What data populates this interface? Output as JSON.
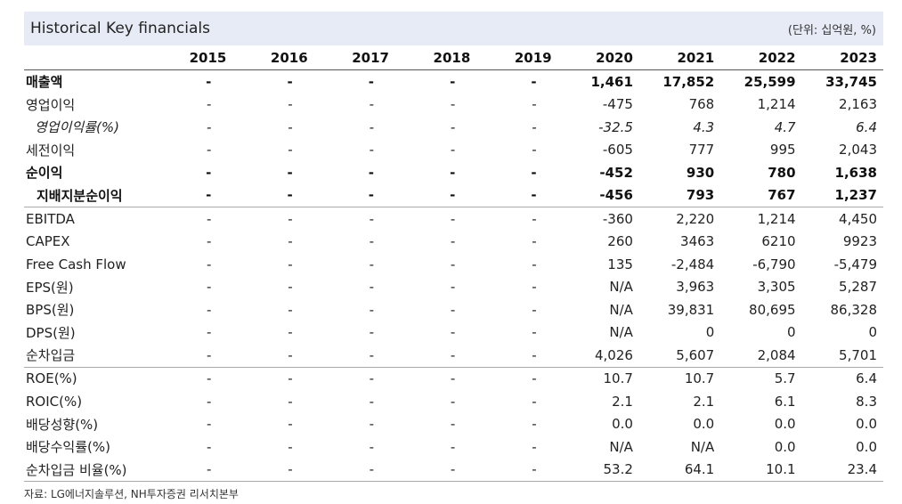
{
  "header": {
    "title": "Historical Key financials",
    "unit": "(단위: 십억원, %)"
  },
  "years": [
    "2015",
    "2016",
    "2017",
    "2018",
    "2019",
    "2020",
    "2021",
    "2022",
    "2023"
  ],
  "rows": [
    {
      "label": "매출액",
      "style": "bold",
      "values": [
        "-",
        "-",
        "-",
        "-",
        "-",
        "1,461",
        "17,852",
        "25,599",
        "33,745"
      ]
    },
    {
      "label": "영업이익",
      "style": "",
      "values": [
        "-",
        "-",
        "-",
        "-",
        "-",
        "-475",
        "768",
        "1,214",
        "2,163"
      ]
    },
    {
      "label": "영업이익률(%)",
      "style": "italic indent1",
      "values": [
        "-",
        "-",
        "-",
        "-",
        "-",
        "-32.5",
        "4.3",
        "4.7",
        "6.4"
      ]
    },
    {
      "label": "세전이익",
      "style": "",
      "values": [
        "-",
        "-",
        "-",
        "-",
        "-",
        "-605",
        "777",
        "995",
        "2,043"
      ]
    },
    {
      "label": "순이익",
      "style": "bold",
      "values": [
        "-",
        "-",
        "-",
        "-",
        "-",
        "-452",
        "930",
        "780",
        "1,638"
      ]
    },
    {
      "label": "지배지분순이익",
      "style": "bold indent2",
      "values": [
        "-",
        "-",
        "-",
        "-",
        "-",
        "-456",
        "793",
        "767",
        "1,237"
      ]
    },
    {
      "label": "EBITDA",
      "style": "sep",
      "values": [
        "-",
        "-",
        "-",
        "-",
        "-",
        "-360",
        "2,220",
        "1,214",
        "4,450"
      ]
    },
    {
      "label": "CAPEX",
      "style": "",
      "values": [
        "-",
        "-",
        "-",
        "-",
        "-",
        "260",
        "3463",
        "6210",
        "9923"
      ]
    },
    {
      "label": "Free Cash Flow",
      "style": "",
      "values": [
        "-",
        "-",
        "-",
        "-",
        "-",
        "135",
        "-2,484",
        "-6,790",
        "-5,479"
      ]
    },
    {
      "label": "EPS(원)",
      "style": "",
      "values": [
        "-",
        "-",
        "-",
        "-",
        "-",
        "N/A",
        "3,963",
        "3,305",
        "5,287"
      ]
    },
    {
      "label": "BPS(원)",
      "style": "",
      "values": [
        "-",
        "-",
        "-",
        "-",
        "-",
        "N/A",
        "39,831",
        "80,695",
        "86,328"
      ]
    },
    {
      "label": "DPS(원)",
      "style": "",
      "values": [
        "-",
        "-",
        "-",
        "-",
        "-",
        "N/A",
        "0",
        "0",
        "0"
      ]
    },
    {
      "label": "순차입금",
      "style": "",
      "values": [
        "-",
        "-",
        "-",
        "-",
        "-",
        "4,026",
        "5,607",
        "2,084",
        "5,701"
      ]
    },
    {
      "label": "ROE(%)",
      "style": "sep",
      "values": [
        "-",
        "-",
        "-",
        "-",
        "-",
        "10.7",
        "10.7",
        "5.7",
        "6.4"
      ]
    },
    {
      "label": "ROIC(%)",
      "style": "",
      "values": [
        "-",
        "-",
        "-",
        "-",
        "-",
        "2.1",
        "2.1",
        "6.1",
        "8.3"
      ]
    },
    {
      "label": "배당성향(%)",
      "style": "",
      "values": [
        "-",
        "-",
        "-",
        "-",
        "-",
        "0.0",
        "0.0",
        "0.0",
        "0.0"
      ]
    },
    {
      "label": "배당수익률(%)",
      "style": "",
      "values": [
        "-",
        "-",
        "-",
        "-",
        "-",
        "N/A",
        "N/A",
        "0.0",
        "0.0"
      ]
    },
    {
      "label": "순차입금 비율(%)",
      "style": "last",
      "values": [
        "-",
        "-",
        "-",
        "-",
        "-",
        "53.2",
        "64.1",
        "10.1",
        "23.4"
      ]
    }
  ],
  "footer": {
    "source": "자료: LG에너지솔루션, NH투자증권 리서치본부"
  }
}
